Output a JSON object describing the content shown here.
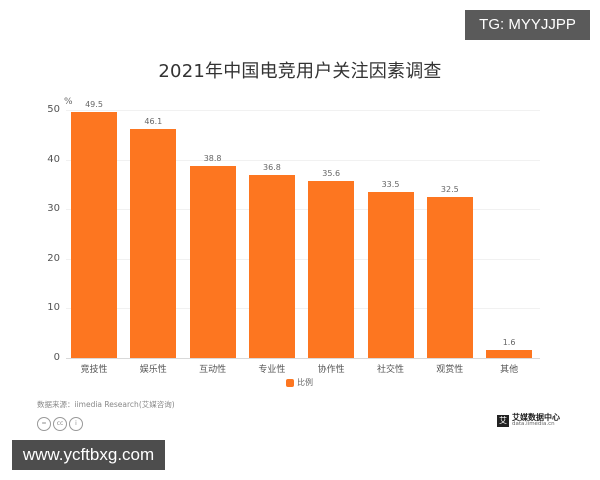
{
  "watermark_top": "TG: MYYJJPP",
  "watermark_bottom": "www.ycftbxg.com",
  "title": "2021年中国电竞用户关注因素调查",
  "y_unit": "%",
  "y_ticks": [
    "0",
    "10",
    "20",
    "30",
    "40",
    "50"
  ],
  "legend": {
    "label": "比例",
    "color": "#fd7620"
  },
  "source": "数据来源：iimedia Research(艾媒咨询)",
  "cc_icons": [
    "=",
    "cc",
    "i"
  ],
  "brand": {
    "mark": "艾",
    "name": "艾媒数据中心",
    "url": "data.iimedia.cn"
  },
  "bars": [
    {
      "label": "竞技性",
      "value": "49.5"
    },
    {
      "label": "娱乐性",
      "value": "46.1"
    },
    {
      "label": "互动性",
      "value": "38.8"
    },
    {
      "label": "专业性",
      "value": "36.8"
    },
    {
      "label": "协作性",
      "value": "35.6"
    },
    {
      "label": "社交性",
      "value": "33.5"
    },
    {
      "label": "观赏性",
      "value": "32.5"
    },
    {
      "label": "其他",
      "value": "1.6"
    }
  ],
  "chart_data": {
    "type": "bar",
    "title": "2021年中国电竞用户关注因素调查",
    "categories": [
      "竞技性",
      "娱乐性",
      "互动性",
      "专业性",
      "协作性",
      "社交性",
      "观赏性",
      "其他"
    ],
    "series": [
      {
        "name": "比例",
        "values": [
          49.5,
          46.1,
          38.8,
          36.8,
          35.6,
          33.5,
          32.5,
          1.6
        ],
        "color": "#fd7620"
      }
    ],
    "xlabel": "",
    "ylabel": "%",
    "ylim": [
      0,
      50
    ],
    "yticks": [
      0,
      10,
      20,
      30,
      40,
      50
    ],
    "grid": true,
    "legend_position": "bottom",
    "source": "数据来源：iimedia Research(艾媒咨询)"
  }
}
